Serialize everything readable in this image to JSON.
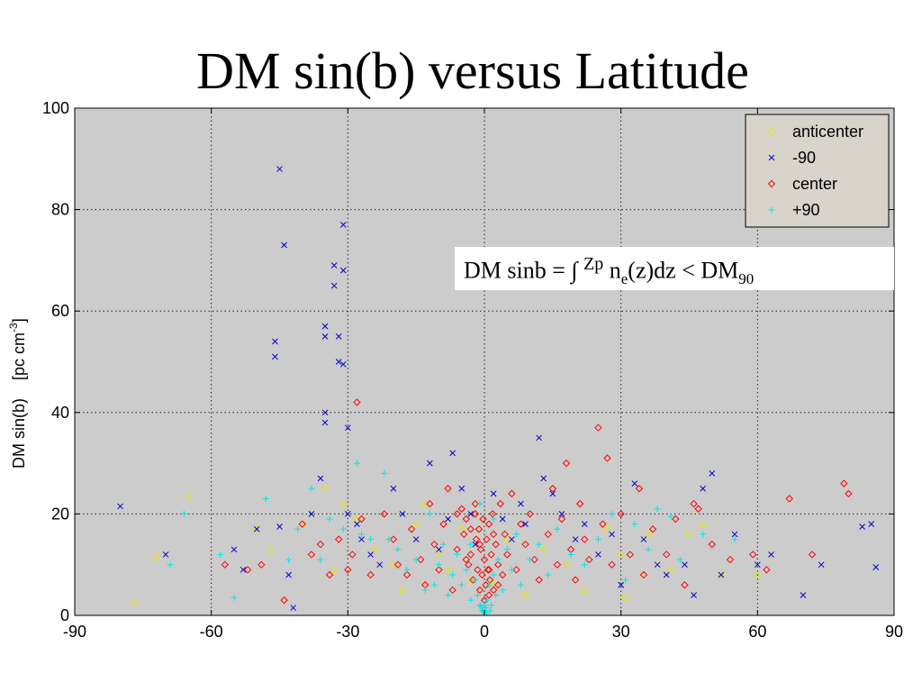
{
  "slide": {
    "title": "DM sin(b) versus Latitude",
    "formula": {
      "lhs": "DM sinb = ∫ ",
      "upper_limit": "Zp",
      "integrand": " n",
      "integrand_sub": "e",
      "rest": "(z)dz < DM",
      "rhs_sub": "90"
    }
  },
  "colors": {
    "plot_background": "#cccccc",
    "anticenter": "#e6e600",
    "minus90": "#0000cc",
    "center": "#ff0000",
    "plus90": "#00e6e6",
    "legend_background": "#d8d4cc"
  },
  "chart_data": {
    "type": "scatter",
    "title": "",
    "xlabel": "",
    "ylabel": "DM sin(b)    [pc cm-3]",
    "ylabel_main": "DM sin(b)",
    "ylabel_unit_prefix": "[pc cm",
    "ylabel_unit_sup": "-3",
    "ylabel_unit_suffix": "]",
    "xlim": [
      -90,
      90
    ],
    "ylim": [
      0,
      100
    ],
    "xticks": [
      -90,
      -60,
      -30,
      0,
      30,
      60,
      90
    ],
    "yticks": [
      0,
      20,
      40,
      60,
      80,
      100
    ],
    "xtick_labels": [
      "-90",
      "-60",
      "-30",
      "0",
      "30",
      "60",
      "90"
    ],
    "ytick_labels": [
      "0",
      "20",
      "40",
      "60",
      "80",
      "100"
    ],
    "grid": true,
    "legend_position": "top-right",
    "series": [
      {
        "name": "anticenter",
        "marker": "circle",
        "points": [
          [
            -77,
            2.5
          ],
          [
            -72,
            11.5
          ],
          [
            -65,
            23.5
          ],
          [
            -50,
            17
          ],
          [
            -47,
            13
          ],
          [
            -40,
            18
          ],
          [
            -33,
            9
          ],
          [
            -31,
            22
          ],
          [
            -28,
            19
          ],
          [
            -24,
            13
          ],
          [
            -20,
            10
          ],
          [
            -15,
            18
          ],
          [
            -13,
            22
          ],
          [
            -10,
            12
          ],
          [
            -8,
            9
          ],
          [
            -5,
            17
          ],
          [
            -3,
            7
          ],
          [
            2,
            6
          ],
          [
            5,
            15
          ],
          [
            9,
            4
          ],
          [
            13,
            13
          ],
          [
            18,
            10
          ],
          [
            22,
            5
          ],
          [
            27,
            17
          ],
          [
            30,
            12
          ],
          [
            31,
            3.5
          ],
          [
            36,
            16
          ],
          [
            41,
            9
          ],
          [
            45,
            16
          ],
          [
            48,
            18
          ],
          [
            52,
            8
          ],
          [
            60,
            8
          ],
          [
            -35,
            25
          ],
          [
            -18,
            5
          ]
        ]
      },
      {
        "name": "-90",
        "marker": "cross",
        "points": [
          [
            -80,
            21.5
          ],
          [
            -70,
            12
          ],
          [
            -55,
            13
          ],
          [
            -53,
            9
          ],
          [
            -50,
            17
          ],
          [
            -45,
            88
          ],
          [
            -44,
            73
          ],
          [
            -46,
            54
          ],
          [
            -46,
            51
          ],
          [
            -45,
            17.5
          ],
          [
            -43,
            8
          ],
          [
            -42,
            1.5
          ],
          [
            -38,
            20
          ],
          [
            -36,
            27
          ],
          [
            -35,
            40
          ],
          [
            -35,
            38
          ],
          [
            -35,
            57
          ],
          [
            -35,
            55
          ],
          [
            -33,
            69
          ],
          [
            -33,
            65
          ],
          [
            -32,
            55
          ],
          [
            -32,
            50
          ],
          [
            -31,
            49.5
          ],
          [
            -31,
            77
          ],
          [
            -31,
            68
          ],
          [
            -30,
            37
          ],
          [
            -30,
            20
          ],
          [
            -28,
            18
          ],
          [
            -27,
            15
          ],
          [
            -25,
            12
          ],
          [
            -23,
            10
          ],
          [
            -20,
            25
          ],
          [
            -18,
            20
          ],
          [
            -15,
            15
          ],
          [
            -12,
            30
          ],
          [
            -10,
            13
          ],
          [
            -8,
            19
          ],
          [
            -7,
            32
          ],
          [
            -5,
            25
          ],
          [
            -3,
            20
          ],
          [
            -2,
            14
          ],
          [
            2,
            24
          ],
          [
            4,
            19
          ],
          [
            6,
            15
          ],
          [
            8,
            22
          ],
          [
            9,
            18
          ],
          [
            12,
            35
          ],
          [
            13,
            27
          ],
          [
            15,
            24
          ],
          [
            17,
            20
          ],
          [
            20,
            15
          ],
          [
            22,
            18
          ],
          [
            25,
            12
          ],
          [
            28,
            16
          ],
          [
            30,
            6
          ],
          [
            33,
            26
          ],
          [
            35,
            15
          ],
          [
            38,
            10
          ],
          [
            40,
            8
          ],
          [
            44,
            10
          ],
          [
            46,
            4
          ],
          [
            48,
            25
          ],
          [
            50,
            28
          ],
          [
            52,
            8
          ],
          [
            55,
            16
          ],
          [
            60,
            10
          ],
          [
            63,
            12
          ],
          [
            70,
            4
          ],
          [
            74,
            10
          ],
          [
            83,
            17.5
          ],
          [
            85,
            18
          ],
          [
            86,
            9.5
          ]
        ]
      },
      {
        "name": "center",
        "marker": "diamond",
        "points": [
          [
            -57,
            10
          ],
          [
            -52,
            9
          ],
          [
            -49,
            10
          ],
          [
            -44,
            3
          ],
          [
            -40,
            18
          ],
          [
            -38,
            12
          ],
          [
            -36,
            14
          ],
          [
            -34,
            8
          ],
          [
            -32,
            15
          ],
          [
            -30,
            9
          ],
          [
            -29,
            12
          ],
          [
            -28,
            42
          ],
          [
            -27,
            19
          ],
          [
            -25,
            8
          ],
          [
            -22,
            20
          ],
          [
            -20,
            15
          ],
          [
            -19,
            10
          ],
          [
            -17,
            8
          ],
          [
            -16,
            17
          ],
          [
            -14,
            11
          ],
          [
            -13,
            6
          ],
          [
            -12,
            22
          ],
          [
            -11,
            14
          ],
          [
            -10,
            9
          ],
          [
            -9,
            18
          ],
          [
            -8,
            25
          ],
          [
            -7,
            5
          ],
          [
            -6,
            13
          ],
          [
            -5,
            21
          ],
          [
            -4.5,
            16
          ],
          [
            -4,
            19
          ],
          [
            -3.5,
            10
          ],
          [
            -3,
            12
          ],
          [
            -2.5,
            7
          ],
          [
            -2,
            20
          ],
          [
            -1.8,
            15
          ],
          [
            -1.5,
            9
          ],
          [
            -1.2,
            17
          ],
          [
            -1,
            5
          ],
          [
            -0.8,
            13
          ],
          [
            -0.5,
            8
          ],
          [
            -0.3,
            19
          ],
          [
            0,
            11
          ],
          [
            0.3,
            6
          ],
          [
            0.5,
            15
          ],
          [
            0.8,
            9
          ],
          [
            1,
            18
          ],
          [
            1.2,
            7
          ],
          [
            1.5,
            12
          ],
          [
            1.8,
            20
          ],
          [
            2,
            5
          ],
          [
            2.5,
            14
          ],
          [
            3,
            10
          ],
          [
            3.5,
            22
          ],
          [
            4,
            8
          ],
          [
            4.5,
            16
          ],
          [
            5,
            12
          ],
          [
            6,
            24
          ],
          [
            7,
            9
          ],
          [
            8,
            18
          ],
          [
            9,
            14
          ],
          [
            10,
            20
          ],
          [
            11,
            11
          ],
          [
            12,
            7
          ],
          [
            14,
            16
          ],
          [
            15,
            25
          ],
          [
            16,
            10
          ],
          [
            17,
            19
          ],
          [
            18,
            30
          ],
          [
            19,
            13
          ],
          [
            20,
            7
          ],
          [
            21,
            22
          ],
          [
            22,
            15
          ],
          [
            23,
            11
          ],
          [
            25,
            37
          ],
          [
            26,
            18
          ],
          [
            27,
            31
          ],
          [
            28,
            10
          ],
          [
            30,
            20
          ],
          [
            32,
            12
          ],
          [
            34,
            25
          ],
          [
            35,
            8
          ],
          [
            37,
            17
          ],
          [
            40,
            12
          ],
          [
            42,
            19
          ],
          [
            44,
            6
          ],
          [
            46,
            22
          ],
          [
            47,
            21
          ],
          [
            50,
            14
          ],
          [
            54,
            11
          ],
          [
            59,
            12
          ],
          [
            62,
            9
          ],
          [
            67,
            23
          ],
          [
            72,
            12
          ],
          [
            79,
            26
          ],
          [
            80,
            24
          ],
          [
            -3,
            17
          ],
          [
            -2,
            22
          ],
          [
            -1,
            14
          ],
          [
            1,
            9
          ],
          [
            2,
            16
          ],
          [
            3,
            6
          ],
          [
            -4,
            11
          ],
          [
            -6,
            20
          ],
          [
            0,
            3
          ],
          [
            1,
            4
          ]
        ]
      },
      {
        "name": "+90",
        "marker": "plus",
        "points": [
          [
            -69,
            10
          ],
          [
            -66,
            20
          ],
          [
            -58,
            12
          ],
          [
            -55,
            3.5
          ],
          [
            -48,
            23
          ],
          [
            -43,
            11
          ],
          [
            -41,
            17
          ],
          [
            -38,
            25
          ],
          [
            -36,
            11
          ],
          [
            -34,
            19
          ],
          [
            -31,
            17
          ],
          [
            -28,
            30
          ],
          [
            -27,
            16
          ],
          [
            -25,
            15
          ],
          [
            -22,
            28
          ],
          [
            -21,
            15
          ],
          [
            -19,
            13
          ],
          [
            -17,
            9
          ],
          [
            -15,
            11
          ],
          [
            -13,
            5
          ],
          [
            -12,
            20
          ],
          [
            -11,
            6
          ],
          [
            -10,
            10
          ],
          [
            -9,
            14
          ],
          [
            -8,
            4
          ],
          [
            -7,
            8
          ],
          [
            -6,
            12
          ],
          [
            -5,
            6
          ],
          [
            -4,
            9
          ],
          [
            -3,
            3
          ],
          [
            -2,
            7
          ],
          [
            -1.5,
            4
          ],
          [
            -1,
            2
          ],
          [
            -0.5,
            1
          ],
          [
            0,
            0.5
          ],
          [
            0.3,
            1.5
          ],
          [
            0.6,
            3
          ],
          [
            1,
            6
          ],
          [
            1.5,
            2
          ],
          [
            2,
            8
          ],
          [
            2.5,
            4
          ],
          [
            3,
            11
          ],
          [
            4,
            5
          ],
          [
            5,
            13
          ],
          [
            6,
            9
          ],
          [
            7,
            16
          ],
          [
            8,
            6
          ],
          [
            10,
            11
          ],
          [
            12,
            14
          ],
          [
            14,
            8
          ],
          [
            16,
            17
          ],
          [
            19,
            12
          ],
          [
            22,
            10
          ],
          [
            25,
            15
          ],
          [
            28,
            20
          ],
          [
            31,
            7
          ],
          [
            33,
            18
          ],
          [
            36,
            13
          ],
          [
            38,
            21
          ],
          [
            41,
            19.5
          ],
          [
            43,
            11
          ],
          [
            48,
            16
          ],
          [
            55,
            15
          ],
          [
            -1,
            22
          ],
          [
            2,
            19
          ],
          [
            -3,
            14
          ],
          [
            0,
            2
          ],
          [
            -0.2,
            0.8
          ],
          [
            0.5,
            0.5
          ],
          [
            -0.8,
            1.8
          ],
          [
            1.2,
            0.9
          ]
        ]
      }
    ]
  }
}
